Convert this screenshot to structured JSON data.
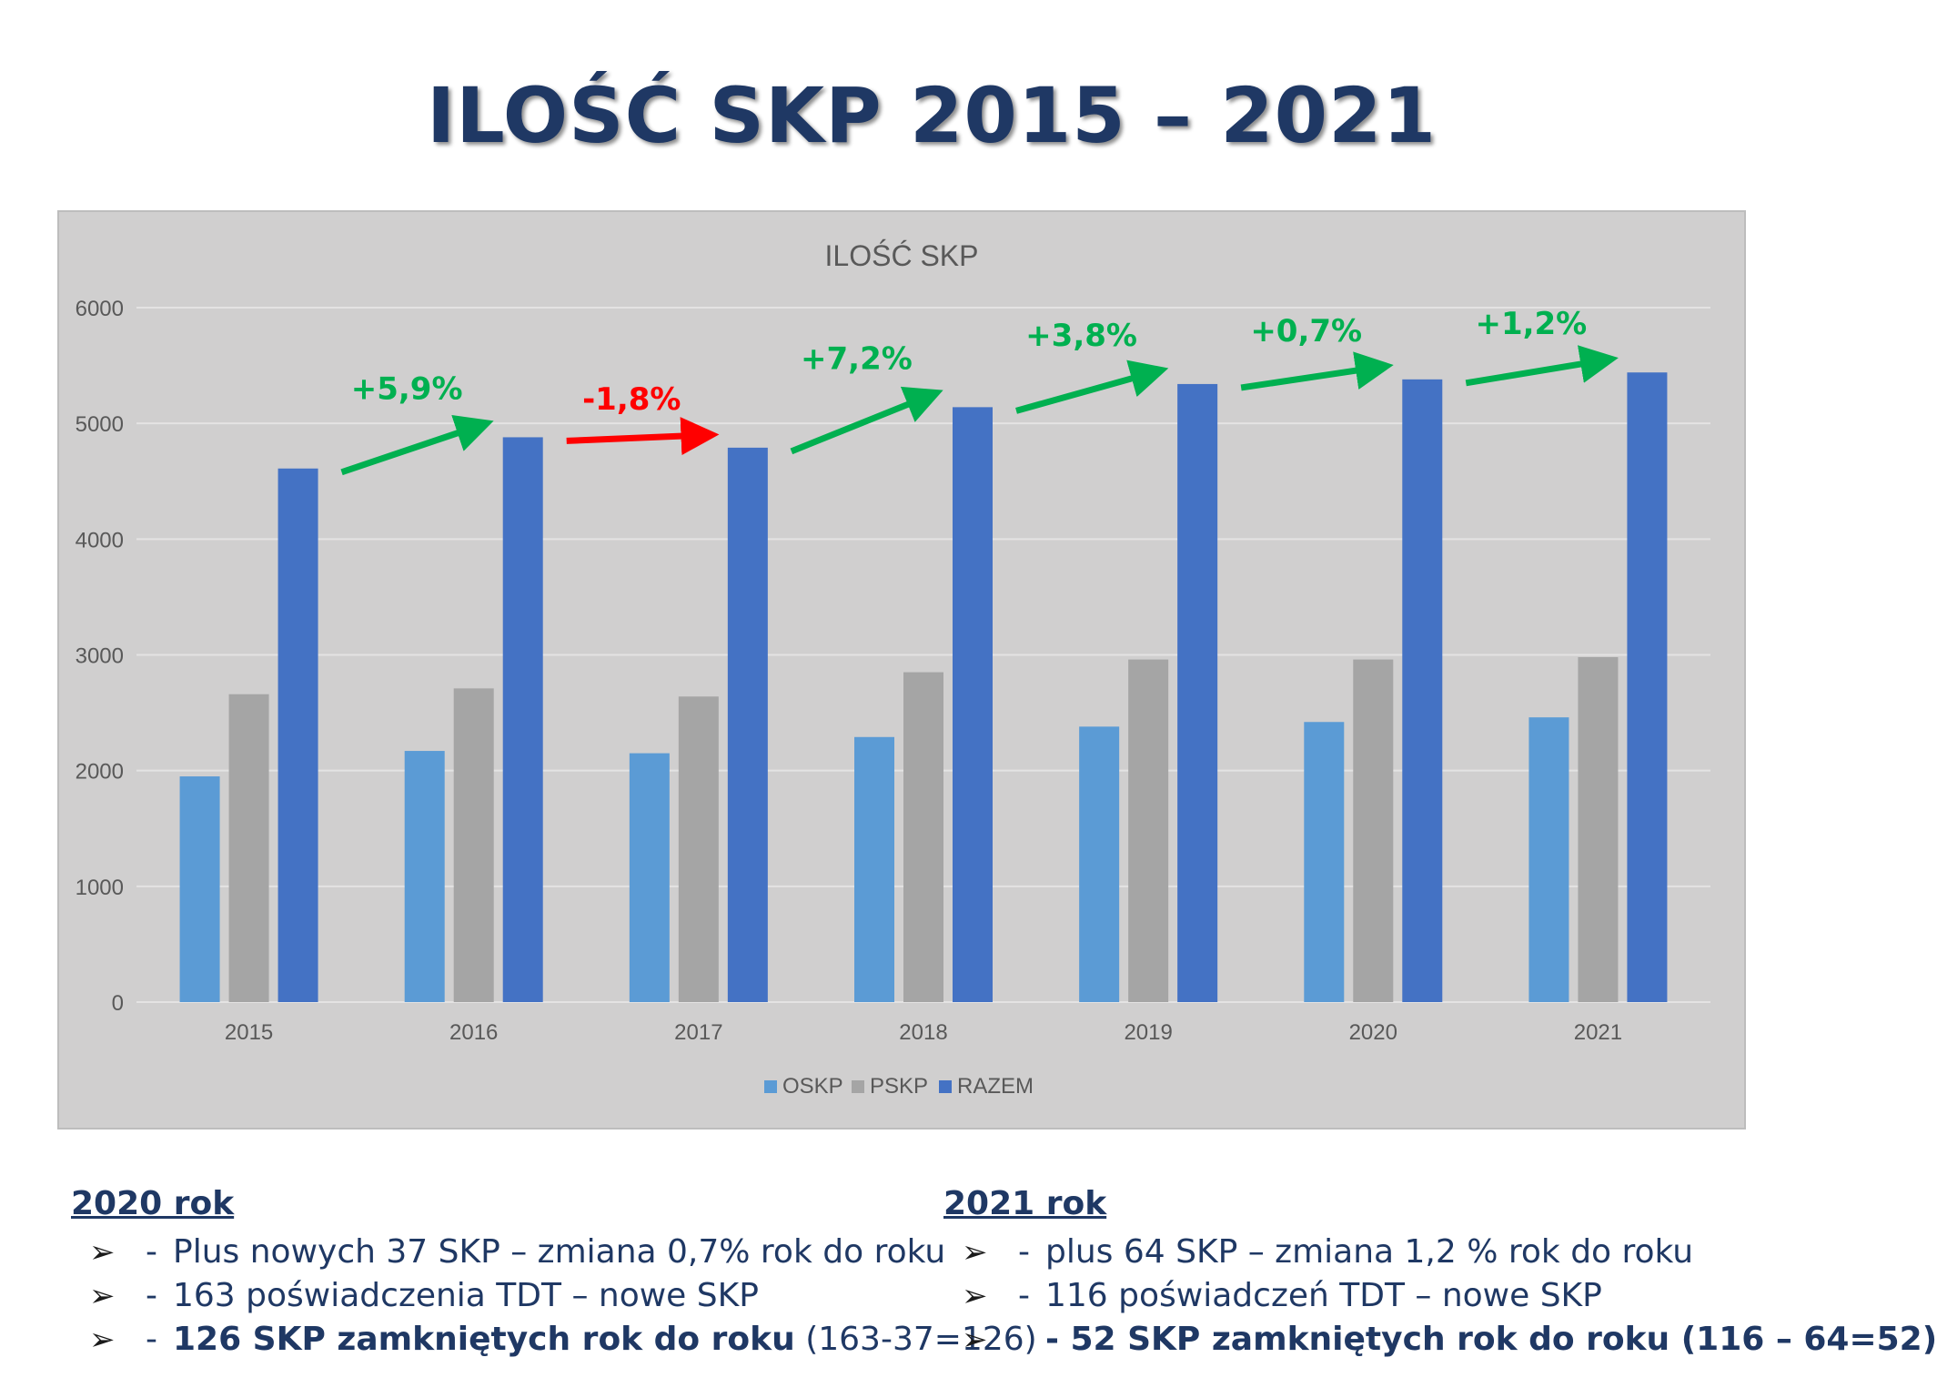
{
  "title": "ILOŚĆ SKP 2015 – 2021",
  "chart_data": {
    "type": "bar",
    "title": "ILOŚĆ SKP",
    "categories": [
      "2015",
      "2016",
      "2017",
      "2018",
      "2019",
      "2020",
      "2021"
    ],
    "series": [
      {
        "name": "OSKP",
        "color": "#5b9bd5",
        "values": [
          1950,
          2170,
          2150,
          2290,
          2380,
          2420,
          2460
        ]
      },
      {
        "name": "PSKP",
        "color": "#a5a5a5",
        "values": [
          2660,
          2710,
          2640,
          2850,
          2960,
          2960,
          2980
        ]
      },
      {
        "name": "RAZEM",
        "color": "#4472c4",
        "values": [
          4610,
          4880,
          4790,
          5140,
          5340,
          5380,
          5440
        ]
      }
    ],
    "ylim": [
      0,
      6000
    ],
    "yticks": [
      0,
      1000,
      2000,
      3000,
      4000,
      5000,
      6000
    ],
    "grid": true,
    "legend_position": "bottom",
    "background": "#d0cfcf",
    "annotations": [
      {
        "text": "+5,9%",
        "color": "#00b050"
      },
      {
        "text": "-1,8%",
        "color": "#ff0000"
      },
      {
        "text": "+7,2%",
        "color": "#00b050"
      },
      {
        "text": "+3,8%",
        "color": "#00b050"
      },
      {
        "text": "+0,7%",
        "color": "#00b050"
      },
      {
        "text": "+1,2%",
        "color": "#00b050"
      }
    ]
  },
  "notes": {
    "left": {
      "heading": "2020 rok",
      "lines": [
        {
          "dash": "-",
          "text": "Plus nowych 37 SKP – zmiana 0,7% rok do roku",
          "bold": "",
          "tail": ""
        },
        {
          "dash": "-",
          "text": "163 poświadczenia TDT – nowe SKP",
          "bold": "",
          "tail": ""
        },
        {
          "dash": "-",
          "text": "",
          "bold": "126 SKP zamkniętych rok do roku",
          "tail": " (163-37=126)"
        }
      ]
    },
    "right": {
      "heading": "2021 rok",
      "lines": [
        {
          "dash": "-",
          "text": "plus 64 SKP – zmiana 1,2 % rok do roku",
          "bold": "",
          "tail": ""
        },
        {
          "dash": "-",
          "text": "116 poświadczeń TDT – nowe SKP",
          "bold": "",
          "tail": ""
        },
        {
          "dash": "-",
          "text": "",
          "bold": "- 52 SKP zamkniętych rok do roku (116 – 64=52)",
          "tail": ""
        }
      ]
    },
    "bullet": "➢"
  }
}
